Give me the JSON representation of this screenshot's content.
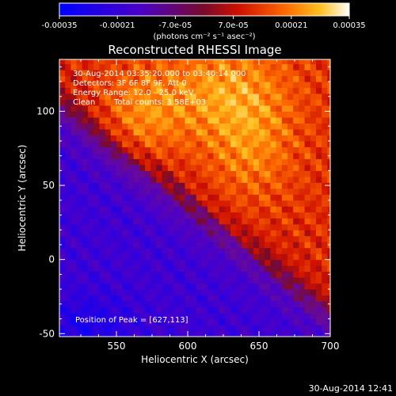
{
  "chart_data": {
    "type": "heatmap",
    "title": "Reconstructed RHESSI Image",
    "xlabel": "Heliocentric X (arcsec)",
    "ylabel": "Heliocentric Y (arcsec)",
    "xlim": [
      510,
      700
    ],
    "ylim": [
      -52,
      135
    ],
    "x_ticks": [
      550,
      600,
      650,
      700
    ],
    "y_ticks": [
      -50,
      0,
      50,
      100
    ],
    "colorbar": {
      "min": -0.00035,
      "max": 0.00035,
      "tick_values": [
        -0.00035,
        -0.00021,
        -7e-05,
        7e-05,
        0.00021,
        0.00035
      ],
      "tick_labels": [
        "-0.00035",
        "-0.00021",
        "-7.0e-05",
        "7.0e-05",
        "0.00021",
        "0.00035"
      ],
      "unit_label": "(photons cm⁻² s⁻¹ asec⁻²)"
    },
    "annotations": {
      "time_range": "30-Aug-2014 03:35:20.000 to 03:40:14.000",
      "detectors": "Detectors: 3F 6F 8F 9F, Att 0",
      "energy": "Energy Range: 12.0 - 25.0 keV",
      "method": "Clean",
      "counts": "Total counts: 3.58E+03",
      "peak": "Position of Peak = [627,113]"
    },
    "peak_position": [
      627,
      113
    ],
    "timestamp": "30-Aug-2014 12:41"
  }
}
